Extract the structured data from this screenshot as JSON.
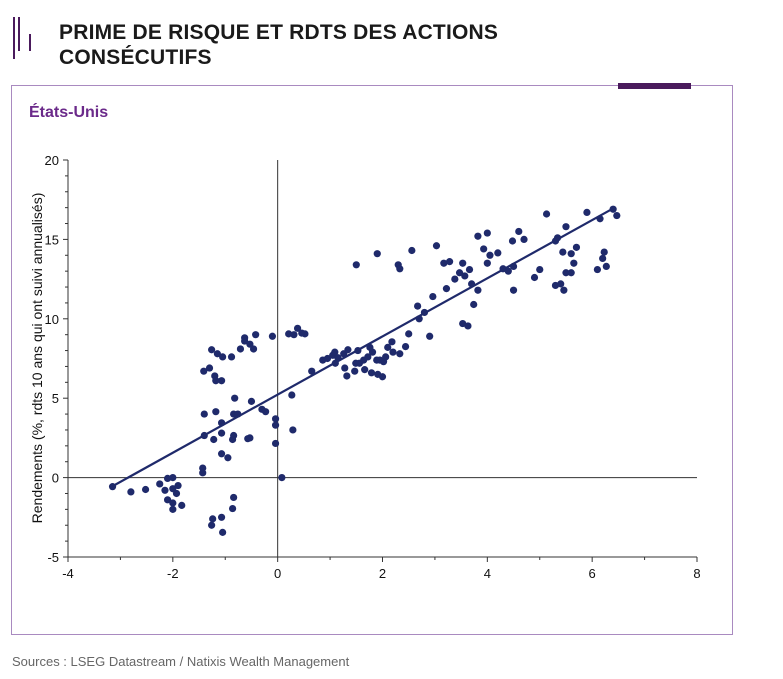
{
  "header": {
    "title_line1": "PRIME DE RISQUE ET RDTS DES ACTIONS",
    "title_line2": "CONSÉCUTIFS"
  },
  "panel": {
    "subtitle": "États-Unis"
  },
  "footer": {
    "source": "Sources : LSEG Datastream / Natixis Wealth Management"
  },
  "colors": {
    "accent": "#4a1a5c",
    "subtitle": "#6b2a8a",
    "points": "#1f2a6b",
    "border": "#a98ac0"
  },
  "chart_data": {
    "type": "scatter",
    "title": "",
    "xlabel": "",
    "ylabel": "Rendements (%, rdts 10 ans qui ont suivi annualisés)",
    "xlim": [
      -4,
      8
    ],
    "ylim": [
      -5,
      20
    ],
    "x_ticks": [
      "-4",
      "-2",
      "0",
      "2",
      "4",
      "6",
      "8"
    ],
    "y_ticks": [
      "-5",
      "0",
      "5",
      "10",
      "15",
      "20"
    ],
    "grid": false,
    "trendline": {
      "x": [
        -3.1,
        6.4
      ],
      "y": [
        -0.45,
        16.95
      ]
    },
    "points": [
      [
        -3.15,
        -0.57
      ],
      [
        -2.8,
        -0.9
      ],
      [
        -2.52,
        -0.75
      ],
      [
        -2.25,
        -0.4
      ],
      [
        -2.1,
        -0.05
      ],
      [
        -2.0,
        0
      ],
      [
        -2.15,
        -0.8
      ],
      [
        -2.0,
        -0.7
      ],
      [
        -1.9,
        -0.5
      ],
      [
        -2.1,
        -1.4
      ],
      [
        -2.0,
        -1.6
      ],
      [
        -2.0,
        -2.0
      ],
      [
        -1.83,
        -1.75
      ],
      [
        -1.93,
        -1.0
      ],
      [
        -1.24,
        -2.6
      ],
      [
        -1.26,
        -3.0
      ],
      [
        -1.07,
        -2.5
      ],
      [
        -1.05,
        -3.45
      ],
      [
        -0.86,
        -1.95
      ],
      [
        -0.84,
        -1.25
      ],
      [
        -1.43,
        0.6
      ],
      [
        -1.43,
        0.3
      ],
      [
        -1.07,
        1.5
      ],
      [
        -0.95,
        1.25
      ],
      [
        -1.4,
        2.65
      ],
      [
        -1.22,
        2.4
      ],
      [
        -1.07,
        2.8
      ],
      [
        -0.84,
        2.65
      ],
      [
        -0.86,
        2.4
      ],
      [
        -0.57,
        2.45
      ],
      [
        -0.53,
        2.5
      ],
      [
        -1.4,
        4.0
      ],
      [
        -1.18,
        4.15
      ],
      [
        -1.07,
        3.45
      ],
      [
        -0.84,
        4.0
      ],
      [
        -0.82,
        5.0
      ],
      [
        -0.76,
        4.0
      ],
      [
        -0.5,
        4.8
      ],
      [
        -0.3,
        4.3
      ],
      [
        -0.23,
        4.15
      ],
      [
        -0.04,
        3.7
      ],
      [
        -0.04,
        3.3
      ],
      [
        -0.04,
        2.15
      ],
      [
        0.08,
        0
      ],
      [
        0.27,
        5.2
      ],
      [
        0.29,
        3.0
      ],
      [
        -1.41,
        6.7
      ],
      [
        -1.3,
        6.9
      ],
      [
        -1.26,
        8.05
      ],
      [
        -1.15,
        7.8
      ],
      [
        -1.2,
        6.4
      ],
      [
        -1.18,
        6.1
      ],
      [
        -1.07,
        6.1
      ],
      [
        -1.05,
        7.6
      ],
      [
        -0.88,
        7.6
      ],
      [
        -0.71,
        8.1
      ],
      [
        -0.63,
        8.6
      ],
      [
        -0.63,
        8.8
      ],
      [
        -0.53,
        8.4
      ],
      [
        -0.46,
        8.1
      ],
      [
        -0.42,
        9.0
      ],
      [
        -0.1,
        8.9
      ],
      [
        0.21,
        9.05
      ],
      [
        0.31,
        9.0
      ],
      [
        0.38,
        9.4
      ],
      [
        0.46,
        9.1
      ],
      [
        0.52,
        9.05
      ],
      [
        0.65,
        6.7
      ],
      [
        0.86,
        7.4
      ],
      [
        0.95,
        7.5
      ],
      [
        1.05,
        7.7
      ],
      [
        1.09,
        7.9
      ],
      [
        1.1,
        7.2
      ],
      [
        1.15,
        7.55
      ],
      [
        1.26,
        7.8
      ],
      [
        1.34,
        8.05
      ],
      [
        1.32,
        6.4
      ],
      [
        1.28,
        6.9
      ],
      [
        1.47,
        6.7
      ],
      [
        1.49,
        7.2
      ],
      [
        1.56,
        7.2
      ],
      [
        1.64,
        7.4
      ],
      [
        1.72,
        7.6
      ],
      [
        1.76,
        8.2
      ],
      [
        1.81,
        7.9
      ],
      [
        1.89,
        7.4
      ],
      [
        1.95,
        7.4
      ],
      [
        2.02,
        7.3
      ],
      [
        2.06,
        7.6
      ],
      [
        1.79,
        6.6
      ],
      [
        1.91,
        6.5
      ],
      [
        1.66,
        6.8
      ],
      [
        2.1,
        8.2
      ],
      [
        2.2,
        7.9
      ],
      [
        2.33,
        7.8
      ],
      [
        2.0,
        6.35
      ],
      [
        1.53,
        8.0
      ],
      [
        2.18,
        8.55
      ],
      [
        1.5,
        13.4
      ],
      [
        1.9,
        14.1
      ],
      [
        2.3,
        13.4
      ],
      [
        2.33,
        13.15
      ],
      [
        2.56,
        14.3
      ],
      [
        2.44,
        8.25
      ],
      [
        2.5,
        9.05
      ],
      [
        2.67,
        10.8
      ],
      [
        2.7,
        10.0
      ],
      [
        2.8,
        10.4
      ],
      [
        2.9,
        8.9
      ],
      [
        2.96,
        11.4
      ],
      [
        3.03,
        14.6
      ],
      [
        3.17,
        13.5
      ],
      [
        3.28,
        13.6
      ],
      [
        3.38,
        12.5
      ],
      [
        3.22,
        11.9
      ],
      [
        3.53,
        13.5
      ],
      [
        3.47,
        12.9
      ],
      [
        3.57,
        12.7
      ],
      [
        3.66,
        13.1
      ],
      [
        3.7,
        12.2
      ],
      [
        3.53,
        9.7
      ],
      [
        3.63,
        9.55
      ],
      [
        3.74,
        10.9
      ],
      [
        3.82,
        11.8
      ],
      [
        3.82,
        15.2
      ],
      [
        4.0,
        15.4
      ],
      [
        3.93,
        14.4
      ],
      [
        4.05,
        14.0
      ],
      [
        4.0,
        13.5
      ],
      [
        4.2,
        14.15
      ],
      [
        4.3,
        13.15
      ],
      [
        4.4,
        13.0
      ],
      [
        4.5,
        13.3
      ],
      [
        4.5,
        11.8
      ],
      [
        4.48,
        14.9
      ],
      [
        4.6,
        15.5
      ],
      [
        4.7,
        15.0
      ],
      [
        4.9,
        12.6
      ],
      [
        5.0,
        13.1
      ],
      [
        5.13,
        16.6
      ],
      [
        5.3,
        14.9
      ],
      [
        5.34,
        15.1
      ],
      [
        5.5,
        15.8
      ],
      [
        5.44,
        14.2
      ],
      [
        5.6,
        14.1
      ],
      [
        5.7,
        14.5
      ],
      [
        5.65,
        13.5
      ],
      [
        5.6,
        12.9
      ],
      [
        5.5,
        12.9
      ],
      [
        5.3,
        12.1
      ],
      [
        5.4,
        12.2
      ],
      [
        5.46,
        11.8
      ],
      [
        5.9,
        16.7
      ],
      [
        6.15,
        16.3
      ],
      [
        6.2,
        13.8
      ],
      [
        6.1,
        13.1
      ],
      [
        6.23,
        14.2
      ],
      [
        6.27,
        13.3
      ],
      [
        6.4,
        16.9
      ],
      [
        6.47,
        16.5
      ]
    ]
  }
}
